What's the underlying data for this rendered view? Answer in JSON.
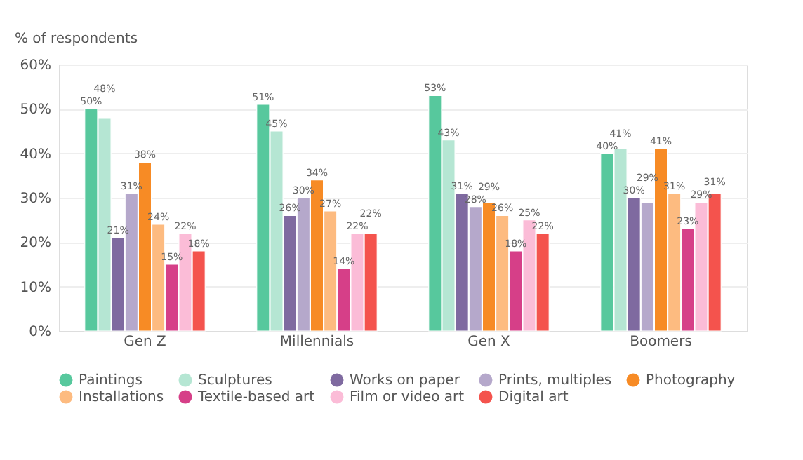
{
  "chart_data": {
    "type": "bar",
    "ylabel": "% of respondents",
    "categories": [
      "Gen Z",
      "Millennials",
      "Gen X",
      "Boomers"
    ],
    "series": [
      {
        "name": "Paintings",
        "color": "#57c89d",
        "values": [
          50,
          51,
          53,
          40
        ],
        "value_labels": [
          "50%",
          "51%",
          "53%",
          "40%"
        ]
      },
      {
        "name": "Sculptures",
        "color": "#b5e6d3",
        "values": [
          48,
          45,
          43,
          41
        ],
        "value_labels": [
          "48%",
          "45%",
          "43%",
          "41%"
        ]
      },
      {
        "name": "Works on paper",
        "color": "#7f6aa0",
        "values": [
          21,
          26,
          31,
          30
        ],
        "value_labels": [
          "21%",
          "26%",
          "31%",
          "30%"
        ]
      },
      {
        "name": "Prints, multiples",
        "color": "#b5a8cb",
        "values": [
          31,
          30,
          28,
          29
        ],
        "value_labels": [
          "31%",
          "30%",
          "28%",
          "29%"
        ]
      },
      {
        "name": "Photography",
        "color": "#f78b25",
        "values": [
          38,
          34,
          29,
          41
        ],
        "value_labels": [
          "38%",
          "34%",
          "29%",
          "41%"
        ]
      },
      {
        "name": "Installations",
        "color": "#fdbb80",
        "values": [
          24,
          27,
          26,
          31
        ],
        "value_labels": [
          "24%",
          "27%",
          "26%",
          "31%"
        ]
      },
      {
        "name": "Textile-based art",
        "color": "#d63f88",
        "values": [
          15,
          14,
          18,
          23
        ],
        "value_labels": [
          "15%",
          "14%",
          "18%",
          "23%"
        ]
      },
      {
        "name": "Film or video art",
        "color": "#fbbcd7",
        "values": [
          22,
          22,
          25,
          29
        ],
        "value_labels": [
          "22%",
          "22%",
          "25%",
          "29%"
        ]
      },
      {
        "name": "Digital art",
        "color": "#f4534d",
        "values": [
          18,
          22,
          22,
          31
        ],
        "value_labels": [
          "18%",
          "22%",
          "22%",
          "31%"
        ]
      }
    ],
    "ylim": [
      0,
      60
    ],
    "yticks": [
      {
        "value": 0,
        "label": "0%"
      },
      {
        "value": 10,
        "label": "10%"
      },
      {
        "value": 20,
        "label": "20%"
      },
      {
        "value": 30,
        "label": "30%"
      },
      {
        "value": 40,
        "label": "40%"
      },
      {
        "value": 50,
        "label": "50%"
      },
      {
        "value": 60,
        "label": "60%"
      }
    ],
    "grid": "y",
    "legend": "bottom"
  }
}
